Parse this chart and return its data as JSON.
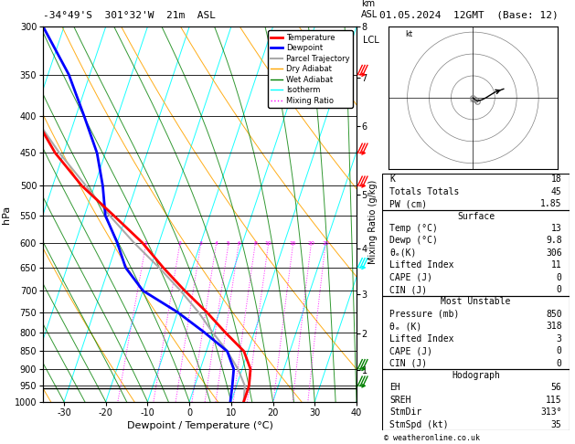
{
  "title_left": "-34°49'S  301°32'W  21m  ASL",
  "title_right": "01.05.2024  12GMT  (Base: 12)",
  "xlabel": "Dewpoint / Temperature (°C)",
  "ylabel_left": "hPa",
  "pressure_ticks": [
    300,
    350,
    400,
    450,
    500,
    550,
    600,
    650,
    700,
    750,
    800,
    850,
    900,
    950,
    1000
  ],
  "temp_range": [
    -35,
    40
  ],
  "temp_ticks": [
    -30,
    -20,
    -10,
    0,
    10,
    20,
    30,
    40
  ],
  "temp_profile_T": [
    13,
    13,
    12,
    9,
    3,
    -3,
    -10,
    -17,
    -24,
    -33,
    -43,
    -52,
    -60,
    -65,
    -68
  ],
  "temp_profile_Td": [
    9.8,
    9,
    8,
    5,
    -2,
    -10,
    -20,
    -26,
    -30,
    -35,
    -38,
    -42,
    -48,
    -55,
    -65
  ],
  "parcel_T": [
    13,
    12,
    9,
    5,
    0,
    -5,
    -11,
    -18,
    -26,
    -34,
    -42,
    -51,
    -60,
    -68,
    -74
  ],
  "pressures": [
    1000,
    950,
    900,
    850,
    800,
    750,
    700,
    650,
    600,
    550,
    500,
    450,
    400,
    350,
    300
  ],
  "km_ticks": [
    1,
    2,
    3,
    4,
    5,
    6,
    7,
    8
  ],
  "km_pressures": [
    898,
    795,
    698,
    598,
    500,
    398,
    338,
    285
  ],
  "lcl_pressure": 958,
  "mixing_ratio_values": [
    1,
    2,
    3,
    4,
    5,
    6,
    8,
    10,
    15,
    20,
    25
  ],
  "stats": {
    "K": 18,
    "Totals_Totals": 45,
    "PW_cm": "1.85",
    "Surface_Temp": 13,
    "Surface_Dewp": "9.8",
    "Surface_ThetaE": 306,
    "Surface_LiftedIndex": 11,
    "Surface_CAPE": 0,
    "Surface_CIN": 0,
    "MU_Pressure": 850,
    "MU_ThetaE": 318,
    "MU_LiftedIndex": 3,
    "MU_CAPE": 0,
    "MU_CIN": 0,
    "EH": 56,
    "SREH": 115,
    "StmDir": "313°",
    "StmSpd_kt": 35
  },
  "bg_color": "#ffffff",
  "temp_line_color": "#ff0000",
  "dewp_line_color": "#0000ff",
  "parcel_line_color": "#aaaaaa",
  "copyright": "© weatheronline.co.uk",
  "skew_factor": 30.0,
  "p_min": 300,
  "p_max": 1000
}
